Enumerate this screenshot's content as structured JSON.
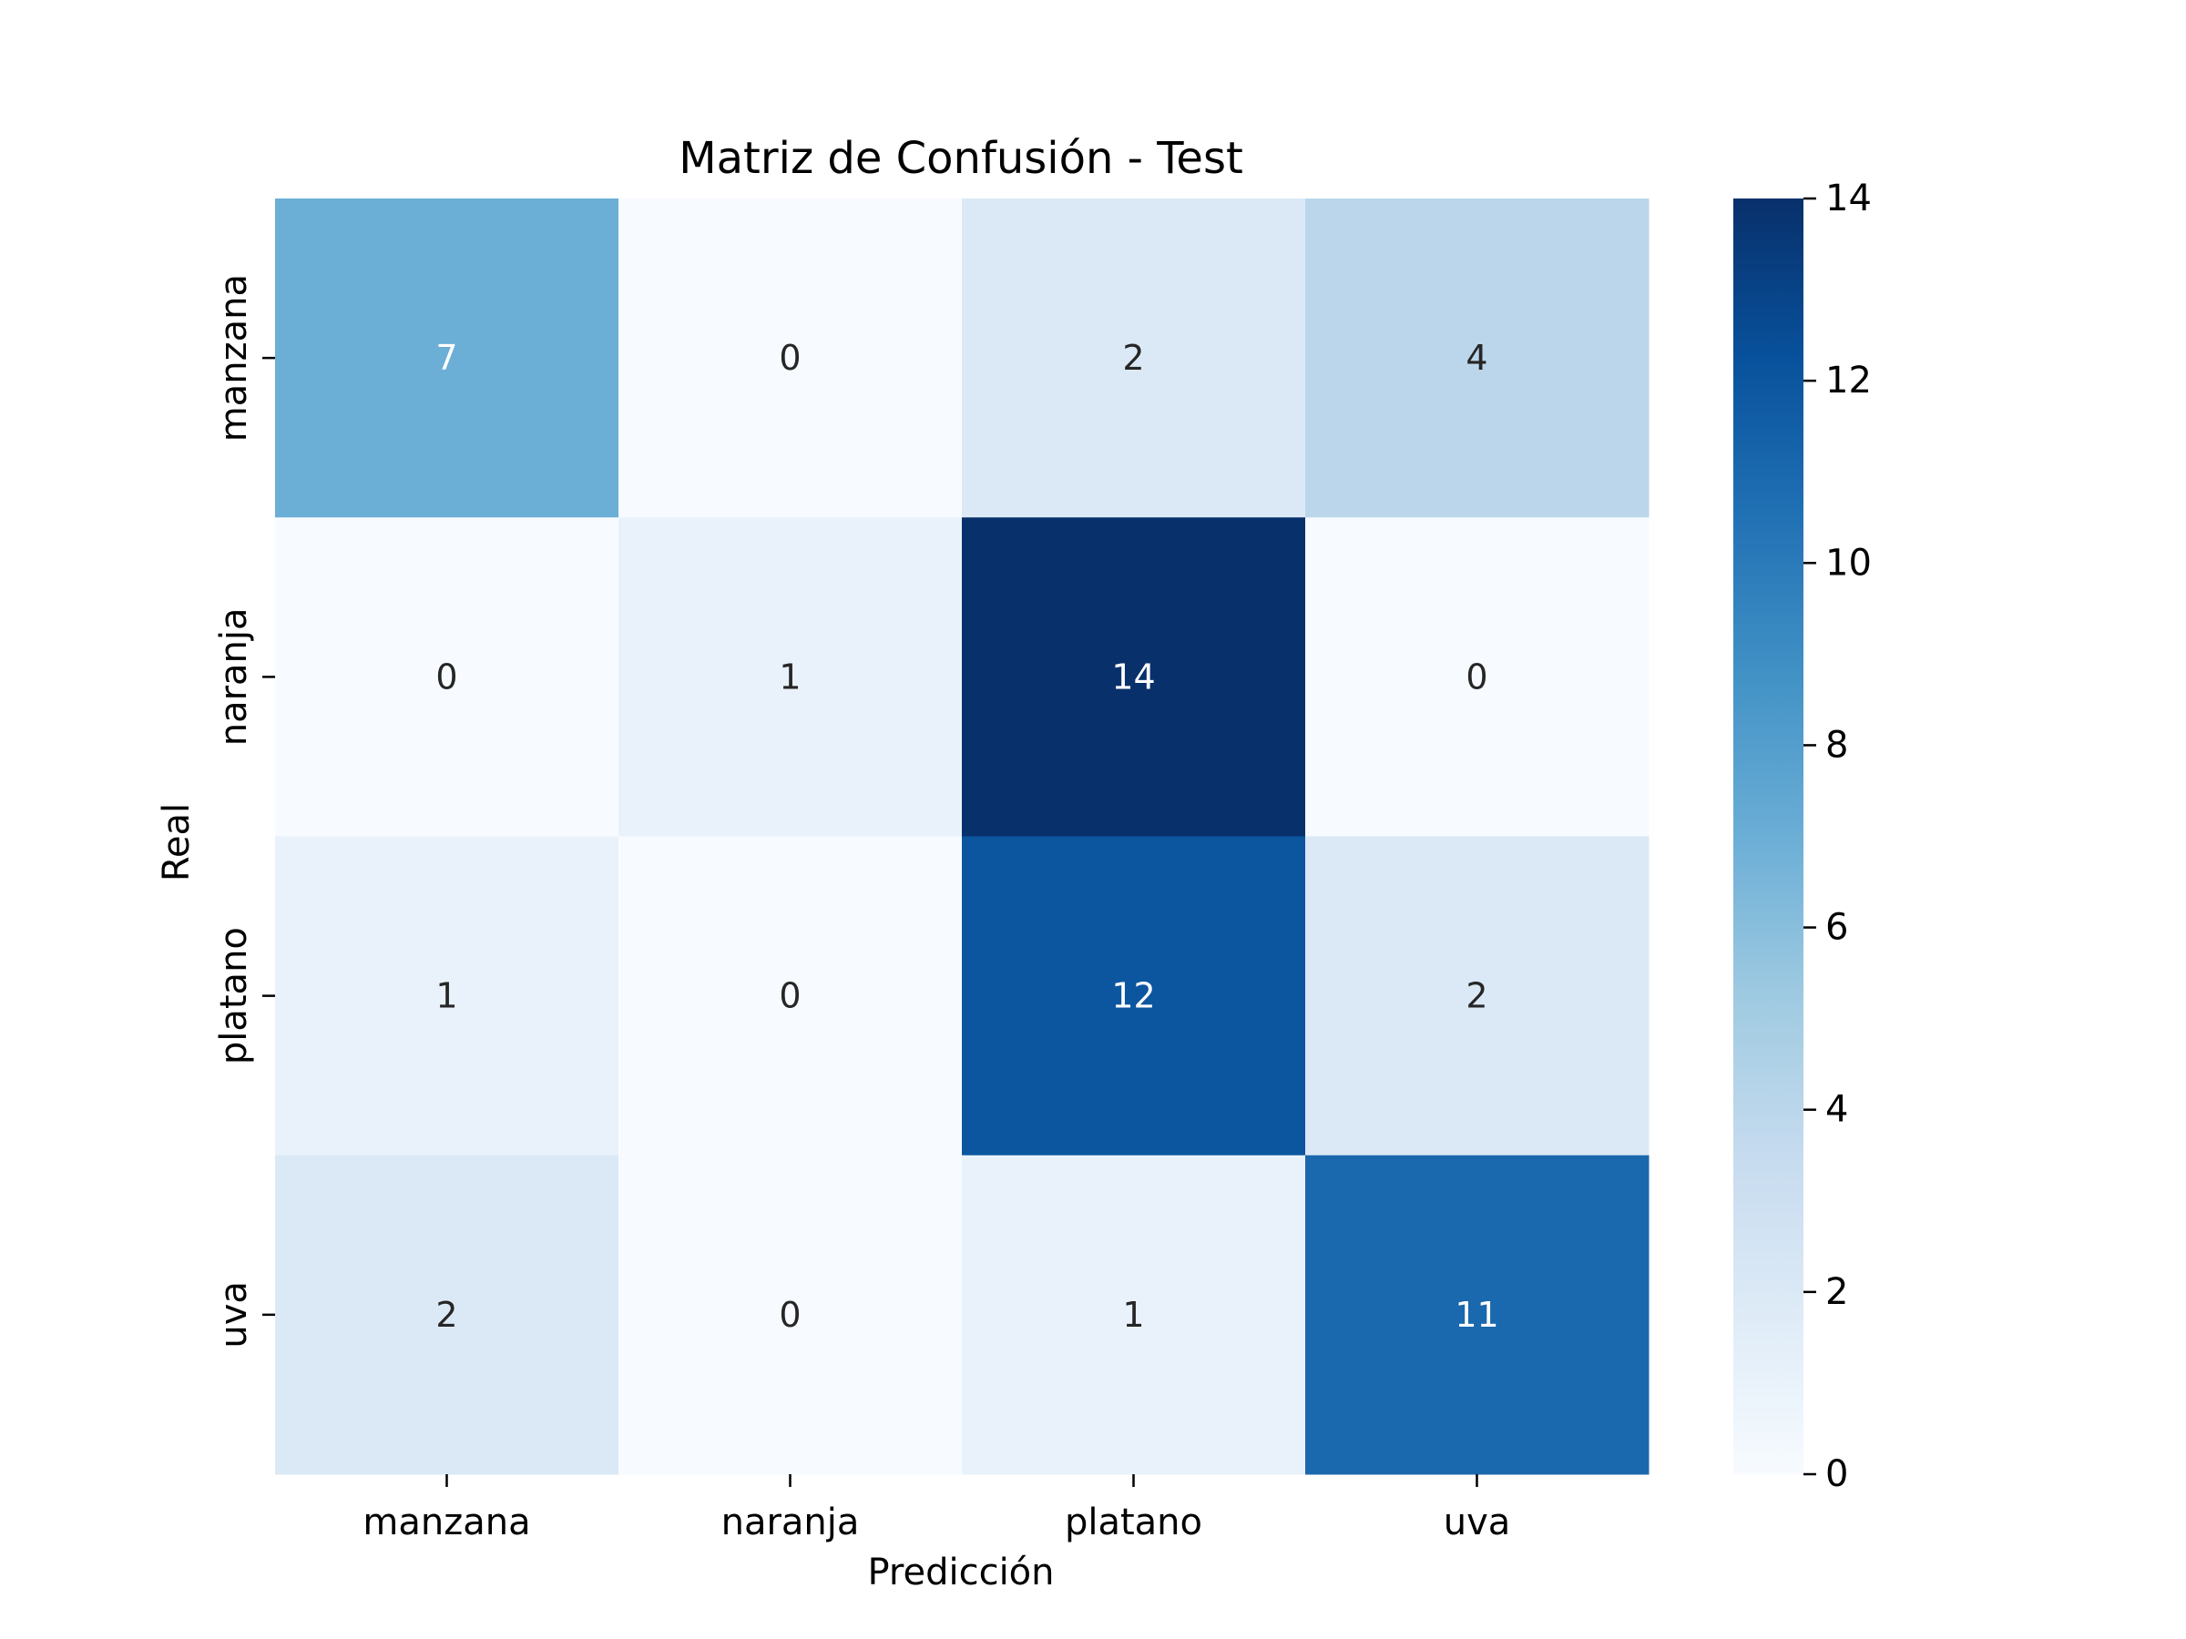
{
  "chart_data": {
    "type": "heatmap",
    "title": "Matriz de Confusión - Test",
    "xlabel": "Predicción",
    "ylabel": "Real",
    "x_categories": [
      "manzana",
      "naranja",
      "platano",
      "uva"
    ],
    "y_categories": [
      "manzana",
      "naranja",
      "platano",
      "uva"
    ],
    "values": [
      [
        7,
        0,
        2,
        4
      ],
      [
        0,
        1,
        14,
        0
      ],
      [
        1,
        0,
        12,
        2
      ],
      [
        2,
        0,
        1,
        11
      ]
    ],
    "colormap": "Blues",
    "color_range": [
      0,
      14
    ],
    "colorbar_ticks": [
      0,
      2,
      4,
      6,
      8,
      10,
      12,
      14
    ],
    "annotation_colors": {
      "dark_cell": "#ffffff",
      "light_cell": "#262626"
    }
  }
}
